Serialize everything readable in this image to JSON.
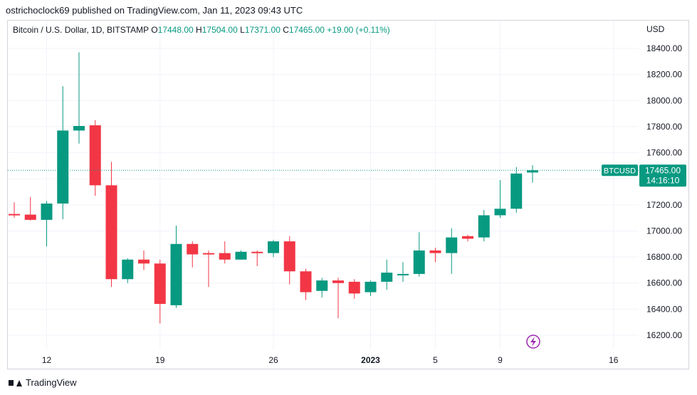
{
  "header": {
    "publisher": "ostrichoclock69 published on TradingView.com, Jan 11, 2023 09:43 UTC"
  },
  "legend": {
    "symbol": "Bitcoin / U.S. Dollar, 1D, BITSTAMP",
    "o_label": "O",
    "o_value": "17448.00",
    "h_label": "H",
    "h_value": "17504.00",
    "l_label": "L",
    "l_value": "17371.00",
    "c_label": "C",
    "c_value": "17465.00",
    "change": "+19.00 (+0.11%)"
  },
  "footer": {
    "brand": "TradingView"
  },
  "colors": {
    "up": "#089981",
    "down": "#f23645",
    "grid": "#f0f3fa",
    "axis_text": "#131722",
    "purple": "#9c27b0"
  },
  "chart_data": {
    "type": "candlestick",
    "title": "Bitcoin / U.S. Dollar, 1D, BITSTAMP",
    "currency_label": "USD",
    "ylim": [
      16050,
      18600
    ],
    "y_ticks": [
      16200,
      16400,
      16600,
      16800,
      17000,
      17200,
      17400,
      17600,
      17800,
      18000,
      18200,
      18400
    ],
    "y_tick_labels": [
      "16200.00",
      "16400.00",
      "16600.00",
      "16800.00",
      "17000.00",
      "17200.00",
      "17400.00",
      "17600.00",
      "17800.00",
      "18000.00",
      "18200.00",
      "18400.00"
    ],
    "x_ticks": [
      {
        "index": 2,
        "label": "12"
      },
      {
        "index": 9,
        "label": "19"
      },
      {
        "index": 16,
        "label": "26"
      },
      {
        "index": 22,
        "label": "2023"
      },
      {
        "index": 26,
        "label": "5"
      },
      {
        "index": 30,
        "label": "9"
      },
      {
        "index": 37,
        "label": "16"
      }
    ],
    "candles": [
      {
        "o": 17130,
        "h": 17220,
        "l": 17100,
        "c": 17120
      },
      {
        "o": 17125,
        "h": 17260,
        "l": 17080,
        "c": 17085
      },
      {
        "o": 17085,
        "h": 17230,
        "l": 16880,
        "c": 17210
      },
      {
        "o": 17210,
        "h": 18110,
        "l": 17090,
        "c": 17770
      },
      {
        "o": 17770,
        "h": 18370,
        "l": 17670,
        "c": 17805
      },
      {
        "o": 17810,
        "h": 17850,
        "l": 17270,
        "c": 17350
      },
      {
        "o": 17350,
        "h": 17530,
        "l": 16570,
        "c": 16630
      },
      {
        "o": 16630,
        "h": 16790,
        "l": 16600,
        "c": 16780
      },
      {
        "o": 16780,
        "h": 16850,
        "l": 16700,
        "c": 16750
      },
      {
        "o": 16750,
        "h": 16780,
        "l": 16290,
        "c": 16440
      },
      {
        "o": 16430,
        "h": 17040,
        "l": 16410,
        "c": 16900
      },
      {
        "o": 16900,
        "h": 16920,
        "l": 16720,
        "c": 16820
      },
      {
        "o": 16830,
        "h": 16850,
        "l": 16570,
        "c": 16820
      },
      {
        "o": 16830,
        "h": 16920,
        "l": 16750,
        "c": 16780
      },
      {
        "o": 16780,
        "h": 16850,
        "l": 16780,
        "c": 16840
      },
      {
        "o": 16840,
        "h": 16850,
        "l": 16730,
        "c": 16830
      },
      {
        "o": 16830,
        "h": 16930,
        "l": 16800,
        "c": 16920
      },
      {
        "o": 16920,
        "h": 16960,
        "l": 16590,
        "c": 16690
      },
      {
        "o": 16690,
        "h": 16710,
        "l": 16470,
        "c": 16530
      },
      {
        "o": 16540,
        "h": 16640,
        "l": 16490,
        "c": 16620
      },
      {
        "o": 16620,
        "h": 16640,
        "l": 16330,
        "c": 16600
      },
      {
        "o": 16610,
        "h": 16630,
        "l": 16480,
        "c": 16520
      },
      {
        "o": 16530,
        "h": 16620,
        "l": 16500,
        "c": 16610
      },
      {
        "o": 16610,
        "h": 16780,
        "l": 16550,
        "c": 16680
      },
      {
        "o": 16670,
        "h": 16760,
        "l": 16610,
        "c": 16670
      },
      {
        "o": 16670,
        "h": 16990,
        "l": 16650,
        "c": 16850
      },
      {
        "o": 16850,
        "h": 16870,
        "l": 16760,
        "c": 16830
      },
      {
        "o": 16830,
        "h": 17020,
        "l": 16670,
        "c": 16950
      },
      {
        "o": 16960,
        "h": 16970,
        "l": 16920,
        "c": 16940
      },
      {
        "o": 16950,
        "h": 17160,
        "l": 16920,
        "c": 17120
      },
      {
        "o": 17120,
        "h": 17390,
        "l": 17100,
        "c": 17170
      },
      {
        "o": 17170,
        "h": 17490,
        "l": 17140,
        "c": 17440
      },
      {
        "o": 17448,
        "h": 17504,
        "l": 17371,
        "c": 17465
      }
    ],
    "last_price": {
      "symbol": "BTCUSD",
      "value": 17465,
      "value_label": "17465.00",
      "countdown": "14:16:10"
    }
  }
}
